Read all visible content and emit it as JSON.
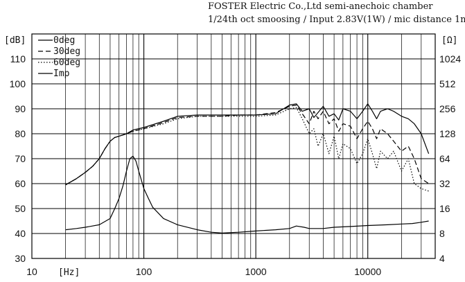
{
  "header": {
    "line1": "FOSTER Electric Co.,Ltd  semi-anechoic chamber",
    "line2": "1/24th oct smoosing / Input 2.83V(1W) / mic distance 1m"
  },
  "chart_data": {
    "type": "line",
    "x_scale": "log",
    "xlim": [
      10,
      40000
    ],
    "ylim": [
      30,
      120
    ],
    "right_ylim": [
      4,
      2048
    ],
    "grid": true,
    "legend_placement": "top-left",
    "x_ticks": [
      10,
      100,
      1000,
      10000
    ],
    "x_tick_labels": [
      "10",
      "100",
      "1000",
      "10000"
    ],
    "x_unit": "[Hz]",
    "y_ticks": [
      30,
      40,
      50,
      60,
      70,
      80,
      90,
      100,
      110
    ],
    "y_tick_labels": [
      "30",
      "40",
      "50",
      "60",
      "70",
      "80",
      "90",
      "100",
      "110"
    ],
    "y_unit": "[dB]",
    "right_ticks": [
      4,
      8,
      16,
      32,
      64,
      128,
      256,
      512,
      1024
    ],
    "right_tick_labels": [
      "4",
      "8",
      "16",
      "32",
      "64",
      "128",
      "256",
      "512",
      "1024"
    ],
    "right_unit": "[Ω]",
    "series": [
      {
        "name": "0deg",
        "style": "solid",
        "points": [
          [
            20,
            59.5
          ],
          [
            25,
            62
          ],
          [
            30,
            64.5
          ],
          [
            35,
            67
          ],
          [
            40,
            70
          ],
          [
            45,
            74
          ],
          [
            50,
            77
          ],
          [
            55,
            78.5
          ],
          [
            60,
            79
          ],
          [
            65,
            79.5
          ],
          [
            70,
            80
          ],
          [
            80,
            81.5
          ],
          [
            100,
            82.5
          ],
          [
            150,
            85
          ],
          [
            200,
            87
          ],
          [
            300,
            87.5
          ],
          [
            500,
            87.5
          ],
          [
            700,
            87.5
          ],
          [
            1000,
            87.5
          ],
          [
            1500,
            88
          ],
          [
            2000,
            91.5
          ],
          [
            2300,
            92
          ],
          [
            2600,
            89
          ],
          [
            3000,
            90
          ],
          [
            3300,
            86.5
          ],
          [
            3600,
            88.5
          ],
          [
            4000,
            91
          ],
          [
            4500,
            87
          ],
          [
            5000,
            88
          ],
          [
            5500,
            85.5
          ],
          [
            6000,
            90
          ],
          [
            7000,
            89
          ],
          [
            8000,
            86
          ],
          [
            9000,
            89
          ],
          [
            10000,
            92
          ],
          [
            11000,
            89
          ],
          [
            12000,
            86
          ],
          [
            13000,
            89
          ],
          [
            15000,
            90
          ],
          [
            17000,
            89
          ],
          [
            20000,
            87
          ],
          [
            23000,
            86
          ],
          [
            26000,
            84
          ],
          [
            30000,
            80
          ],
          [
            35000,
            72
          ]
        ]
      },
      {
        "name": "30deg",
        "style": "dashed",
        "points": [
          [
            20,
            59.5
          ],
          [
            25,
            62
          ],
          [
            30,
            64.5
          ],
          [
            35,
            67
          ],
          [
            40,
            70
          ],
          [
            45,
            74
          ],
          [
            50,
            77
          ],
          [
            55,
            78.5
          ],
          [
            60,
            79
          ],
          [
            65,
            79.5
          ],
          [
            70,
            80
          ],
          [
            80,
            81
          ],
          [
            100,
            82
          ],
          [
            150,
            84.5
          ],
          [
            200,
            86.5
          ],
          [
            300,
            87
          ],
          [
            500,
            87
          ],
          [
            700,
            87.5
          ],
          [
            1000,
            87.5
          ],
          [
            1500,
            88.5
          ],
          [
            2000,
            91
          ],
          [
            2300,
            91.5
          ],
          [
            2600,
            88
          ],
          [
            3000,
            84
          ],
          [
            3300,
            89
          ],
          [
            3600,
            86
          ],
          [
            4000,
            89
          ],
          [
            4500,
            84
          ],
          [
            5000,
            86
          ],
          [
            5500,
            81
          ],
          [
            6000,
            84
          ],
          [
            7000,
            83
          ],
          [
            8000,
            78
          ],
          [
            9000,
            82
          ],
          [
            10000,
            85
          ],
          [
            11000,
            82
          ],
          [
            12000,
            78
          ],
          [
            13000,
            82
          ],
          [
            15000,
            80
          ],
          [
            17000,
            77
          ],
          [
            20000,
            73
          ],
          [
            23000,
            75
          ],
          [
            26000,
            70
          ],
          [
            30000,
            62
          ],
          [
            35000,
            60
          ]
        ]
      },
      {
        "name": "60deg",
        "style": "dotted",
        "points": [
          [
            20,
            59.5
          ],
          [
            25,
            62
          ],
          [
            30,
            64.5
          ],
          [
            35,
            67
          ],
          [
            40,
            70
          ],
          [
            45,
            74
          ],
          [
            50,
            77
          ],
          [
            55,
            78.5
          ],
          [
            60,
            79
          ],
          [
            65,
            79.5
          ],
          [
            70,
            80
          ],
          [
            80,
            81
          ],
          [
            100,
            82
          ],
          [
            150,
            84
          ],
          [
            200,
            86
          ],
          [
            300,
            87
          ],
          [
            500,
            87
          ],
          [
            700,
            87
          ],
          [
            1000,
            87
          ],
          [
            1500,
            87.5
          ],
          [
            2000,
            90
          ],
          [
            2300,
            90.5
          ],
          [
            2600,
            86
          ],
          [
            3000,
            80
          ],
          [
            3300,
            82
          ],
          [
            3600,
            75
          ],
          [
            4000,
            80
          ],
          [
            4500,
            72
          ],
          [
            5000,
            79
          ],
          [
            5500,
            70
          ],
          [
            6000,
            76
          ],
          [
            7000,
            74
          ],
          [
            8000,
            68
          ],
          [
            9000,
            72
          ],
          [
            10000,
            78
          ],
          [
            11000,
            72
          ],
          [
            12000,
            66
          ],
          [
            13000,
            73
          ],
          [
            15000,
            70
          ],
          [
            17000,
            73
          ],
          [
            20000,
            65
          ],
          [
            23000,
            70
          ],
          [
            26000,
            60
          ],
          [
            30000,
            58
          ],
          [
            35000,
            57
          ]
        ]
      },
      {
        "name": "Imp",
        "style": "solid",
        "points": [
          [
            20,
            41.5
          ],
          [
            25,
            42
          ],
          [
            30,
            42.5
          ],
          [
            40,
            43.5
          ],
          [
            50,
            46
          ],
          [
            55,
            50
          ],
          [
            60,
            54
          ],
          [
            65,
            59
          ],
          [
            70,
            65
          ],
          [
            75,
            70
          ],
          [
            80,
            71
          ],
          [
            85,
            69
          ],
          [
            90,
            65
          ],
          [
            100,
            58
          ],
          [
            110,
            54
          ],
          [
            120,
            50.5
          ],
          [
            150,
            46
          ],
          [
            200,
            43.5
          ],
          [
            300,
            41.5
          ],
          [
            400,
            40.5
          ],
          [
            500,
            40.2
          ],
          [
            700,
            40.5
          ],
          [
            1000,
            41
          ],
          [
            1500,
            41.5
          ],
          [
            2000,
            42
          ],
          [
            2300,
            43
          ],
          [
            2700,
            42.5
          ],
          [
            3000,
            42
          ],
          [
            4000,
            42
          ],
          [
            5000,
            42.5
          ],
          [
            7000,
            42.8
          ],
          [
            10000,
            43.2
          ],
          [
            15000,
            43.5
          ],
          [
            20000,
            43.8
          ],
          [
            25000,
            44
          ],
          [
            30000,
            44.5
          ],
          [
            35000,
            45
          ]
        ]
      }
    ]
  }
}
